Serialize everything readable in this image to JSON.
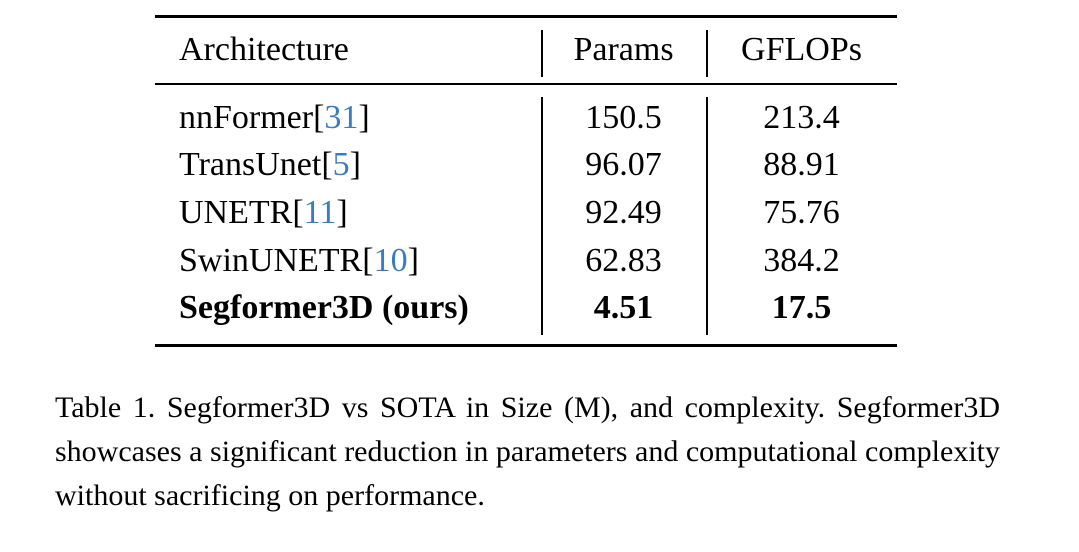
{
  "table": {
    "headers": [
      "Architecture",
      "Params",
      "GFLOPs"
    ],
    "rows": [
      {
        "name": "nnFormer",
        "cite": "31",
        "params": "150.5",
        "gflops": "213.4"
      },
      {
        "name": "TransUnet",
        "cite": "5",
        "params": "96.07",
        "gflops": "88.91"
      },
      {
        "name": "UNETR",
        "cite": "11",
        "params": "92.49",
        "gflops": "75.76"
      },
      {
        "name": "SwinUNETR",
        "cite": "10",
        "params": "62.83",
        "gflops": "384.2"
      }
    ],
    "ours": {
      "name": "Segformer3D (ours)",
      "params": "4.51",
      "gflops": "17.5"
    }
  },
  "caption": "Table 1.  Segformer3D vs SOTA in Size (M), and complexity. Segformer3D showcases a significant reduction in parameters and computational complexity without sacrificing on performance.",
  "colors": {
    "citation": "#3a7cc2"
  }
}
